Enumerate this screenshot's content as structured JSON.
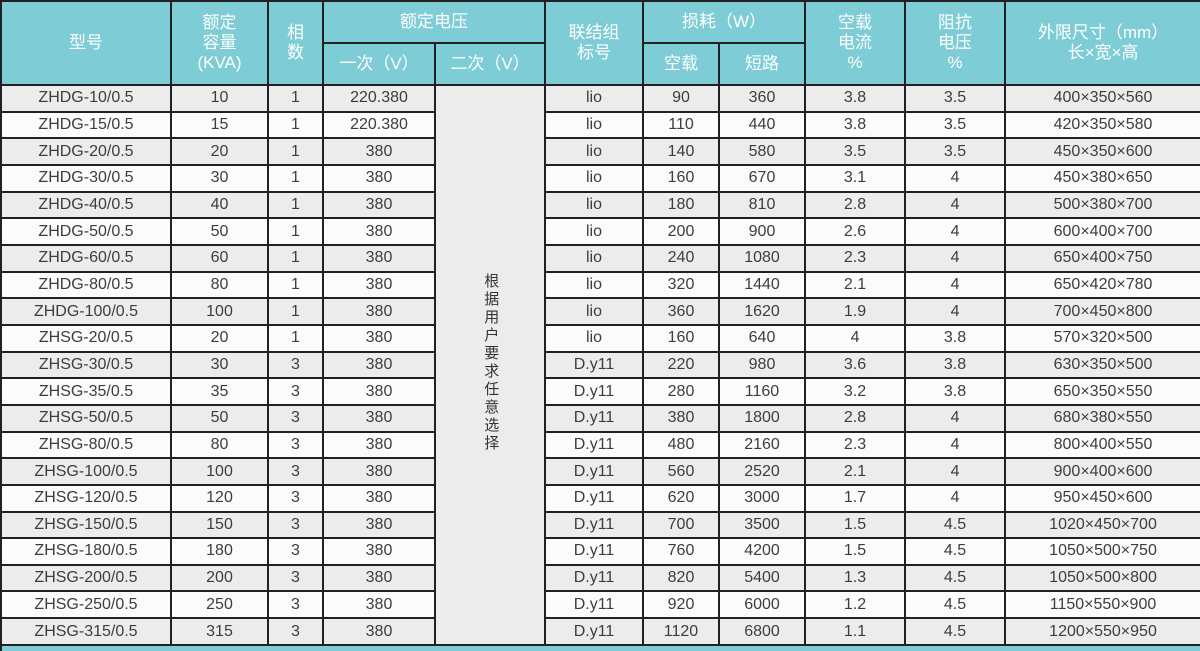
{
  "colors": {
    "header_teal": "#7ecdd6",
    "border": "#212121",
    "row_odd": "#ececec",
    "row_even": "#fbfbfb",
    "note_bg": "#ededed",
    "body_text": "#3d3d3d"
  },
  "table": {
    "header": {
      "model": "型号",
      "capacity": "额定\n容量\n(KVA)",
      "phases": "相\n数",
      "rated_voltage": "额定电压",
      "primary": "一次（V）",
      "secondary": "二次（V）",
      "connection_group": "联结组\n标号",
      "loss": "损耗（W）",
      "no_load": "空载",
      "short_circuit": "短路",
      "no_load_current": "空载\n电流\n%",
      "impedance_voltage": "阻抗\n电压\n%",
      "dimensions": "外限尺寸（mm）\n长×宽×高"
    },
    "secondary_note": "根据用户要求任意选择",
    "rows": [
      [
        "ZHDG-10/0.5",
        "10",
        "1",
        "220.380",
        "lio",
        "90",
        "360",
        "3.8",
        "3.5",
        "400×350×560"
      ],
      [
        "ZHDG-15/0.5",
        "15",
        "1",
        "220.380",
        "lio",
        "110",
        "440",
        "3.8",
        "3.5",
        "420×350×580"
      ],
      [
        "ZHDG-20/0.5",
        "20",
        "1",
        "380",
        "lio",
        "140",
        "580",
        "3.5",
        "3.5",
        "450×350×600"
      ],
      [
        "ZHDG-30/0.5",
        "30",
        "1",
        "380",
        "lio",
        "160",
        "670",
        "3.1",
        "4",
        "450×380×650"
      ],
      [
        "ZHDG-40/0.5",
        "40",
        "1",
        "380",
        "lio",
        "180",
        "810",
        "2.8",
        "4",
        "500×380×700"
      ],
      [
        "ZHDG-50/0.5",
        "50",
        "1",
        "380",
        "lio",
        "200",
        "900",
        "2.6",
        "4",
        "600×400×700"
      ],
      [
        "ZHDG-60/0.5",
        "60",
        "1",
        "380",
        "lio",
        "240",
        "1080",
        "2.3",
        "4",
        "650×400×750"
      ],
      [
        "ZHDG-80/0.5",
        "80",
        "1",
        "380",
        "lio",
        "320",
        "1440",
        "2.1",
        "4",
        "650×420×780"
      ],
      [
        "ZHDG-100/0.5",
        "100",
        "1",
        "380",
        "lio",
        "360",
        "1620",
        "1.9",
        "4",
        "700×450×800"
      ],
      [
        "ZHSG-20/0.5",
        "20",
        "1",
        "380",
        "lio",
        "160",
        "640",
        "4",
        "3.8",
        "570×320×500"
      ],
      [
        "ZHSG-30/0.5",
        "30",
        "3",
        "380",
        "D.y11",
        "220",
        "980",
        "3.6",
        "3.8",
        "630×350×500"
      ],
      [
        "ZHSG-35/0.5",
        "35",
        "3",
        "380",
        "D.y11",
        "280",
        "1160",
        "3.2",
        "3.8",
        "650×350×550"
      ],
      [
        "ZHSG-50/0.5",
        "50",
        "3",
        "380",
        "D.y11",
        "380",
        "1800",
        "2.8",
        "4",
        "680×380×550"
      ],
      [
        "ZHSG-80/0.5",
        "80",
        "3",
        "380",
        "D.y11",
        "480",
        "2160",
        "2.3",
        "4",
        "800×400×550"
      ],
      [
        "ZHSG-100/0.5",
        "100",
        "3",
        "380",
        "D.y11",
        "560",
        "2520",
        "2.1",
        "4",
        "900×400×600"
      ],
      [
        "ZHSG-120/0.5",
        "120",
        "3",
        "380",
        "D.y11",
        "620",
        "3000",
        "1.7",
        "4",
        "950×450×600"
      ],
      [
        "ZHSG-150/0.5",
        "150",
        "3",
        "380",
        "D.y11",
        "700",
        "3500",
        "1.5",
        "4.5",
        "1020×450×700"
      ],
      [
        "ZHSG-180/0.5",
        "180",
        "3",
        "380",
        "D.y11",
        "760",
        "4200",
        "1.5",
        "4.5",
        "1050×500×750"
      ],
      [
        "ZHSG-200/0.5",
        "200",
        "3",
        "380",
        "D.y11",
        "820",
        "5400",
        "1.3",
        "4.5",
        "1050×500×800"
      ],
      [
        "ZHSG-250/0.5",
        "250",
        "3",
        "380",
        "D.y11",
        "920",
        "6000",
        "1.2",
        "4.5",
        "1150×550×900"
      ],
      [
        "ZHSG-315/0.5",
        "315",
        "3",
        "380",
        "D.y11",
        "1120",
        "6800",
        "1.1",
        "4.5",
        "1200×550×950"
      ]
    ]
  }
}
